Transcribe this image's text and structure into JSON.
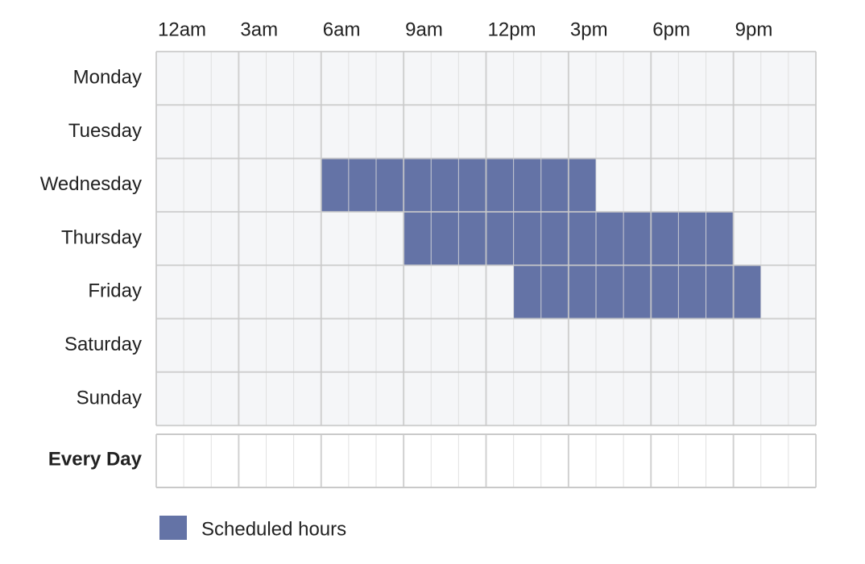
{
  "hour_labels": [
    "12am",
    "3am",
    "6am",
    "9am",
    "12pm",
    "3pm",
    "6pm",
    "9pm"
  ],
  "days": [
    {
      "name": "Monday",
      "blocks": []
    },
    {
      "name": "Tuesday",
      "blocks": []
    },
    {
      "name": "Wednesday",
      "blocks": [
        [
          6,
          16
        ]
      ]
    },
    {
      "name": "Thursday",
      "blocks": [
        [
          9,
          21
        ]
      ]
    },
    {
      "name": "Friday",
      "blocks": [
        [
          13,
          22
        ]
      ]
    },
    {
      "name": "Saturday",
      "blocks": []
    },
    {
      "name": "Sunday",
      "blocks": []
    }
  ],
  "every_day_label": "Every Day",
  "legend": {
    "label": "Scheduled hours",
    "color": "#6473a6"
  }
}
